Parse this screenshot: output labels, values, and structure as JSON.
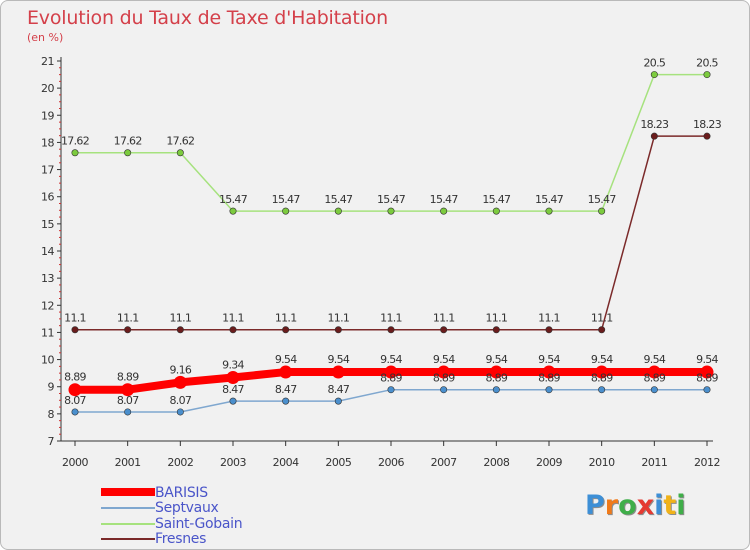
{
  "header": {
    "title": "Evolution du Taux de Taxe d'Habitation",
    "unit": "(en %)"
  },
  "logo": {
    "text": "Proxiti",
    "letters": [
      {
        "ch": "P",
        "color": "#3d8fd6"
      },
      {
        "ch": "r",
        "color": "#f07a1a"
      },
      {
        "ch": "o",
        "color": "#3fae49"
      },
      {
        "ch": "x",
        "color": "#e53a32"
      },
      {
        "ch": "i",
        "color": "#3d8fd6"
      },
      {
        "ch": "t",
        "color": "#f0b21a"
      },
      {
        "ch": "i",
        "color": "#3fae49"
      }
    ]
  },
  "chart_data": {
    "type": "line",
    "title": "Evolution du Taux de Taxe d'Habitation",
    "ylabel": "(en %)",
    "xlabel": "",
    "categories": [
      "2000",
      "2001",
      "2002",
      "2003",
      "2004",
      "2005",
      "2006",
      "2007",
      "2008",
      "2009",
      "2010",
      "2011",
      "2012"
    ],
    "ylim": [
      7,
      21
    ],
    "yticks": [
      "7",
      "8",
      "9",
      "10",
      "11",
      "12",
      "13",
      "14",
      "15",
      "16",
      "17",
      "18",
      "19",
      "20",
      "21"
    ],
    "grid": false,
    "legend_position": "bottom-left",
    "series": [
      {
        "name": "Fresnes",
        "color": "#7b2a2a",
        "marker_color": "#6a1c1c",
        "values": [
          11.1,
          11.1,
          11.1,
          11.1,
          11.1,
          11.1,
          11.1,
          11.1,
          11.1,
          11.1,
          11.1,
          18.23,
          18.23
        ],
        "labels": [
          "11.1",
          "11.1",
          "11.1",
          "11.1",
          "11.1",
          "11.1",
          "11.1",
          "11.1",
          "11.1",
          "11.1",
          "11.1",
          "18.23",
          "18.23"
        ]
      },
      {
        "name": "Saint-Gobain",
        "color": "#a6e27e",
        "marker_color": "#7ccb3e",
        "values": [
          17.62,
          17.62,
          17.62,
          15.47,
          15.47,
          15.47,
          15.47,
          15.47,
          15.47,
          15.47,
          15.47,
          20.5,
          20.5
        ],
        "labels": [
          "17.62",
          "17.62",
          "17.62",
          "15.47",
          "15.47",
          "15.47",
          "15.47",
          "15.47",
          "15.47",
          "15.47",
          "15.47",
          "20.5",
          "20.5"
        ]
      },
      {
        "name": "Septvaux",
        "color": "#7fa7cf",
        "marker_color": "#4a8fcd",
        "values": [
          8.07,
          8.07,
          8.07,
          8.47,
          8.47,
          8.47,
          8.89,
          8.89,
          8.89,
          8.89,
          8.89,
          8.89,
          8.89
        ],
        "labels": [
          "8.07",
          "8.07",
          "8.07",
          "8.47",
          "8.47",
          "8.47",
          "8.89",
          "8.89",
          "8.89",
          "8.89",
          "8.89",
          "8.89",
          "8.89"
        ]
      },
      {
        "name": "BARISIS",
        "color": "#ff0000",
        "marker_color": "#ff0000",
        "values": [
          8.89,
          8.89,
          9.16,
          9.34,
          9.54,
          9.54,
          9.54,
          9.54,
          9.54,
          9.54,
          9.54,
          9.54,
          9.54
        ],
        "labels": [
          "8.89",
          "8.89",
          "9.16",
          "9.34",
          "9.54",
          "9.54",
          "9.54",
          "9.54",
          "9.54",
          "9.54",
          "9.54",
          "9.54",
          "9.54"
        ]
      }
    ],
    "legend": [
      {
        "name": "BARISIS",
        "color": "#ff0000"
      },
      {
        "name": "Septvaux",
        "color": "#7fa7cf"
      },
      {
        "name": "Saint-Gobain",
        "color": "#a6e27e"
      },
      {
        "name": "Fresnes",
        "color": "#7b2a2a"
      }
    ]
  }
}
